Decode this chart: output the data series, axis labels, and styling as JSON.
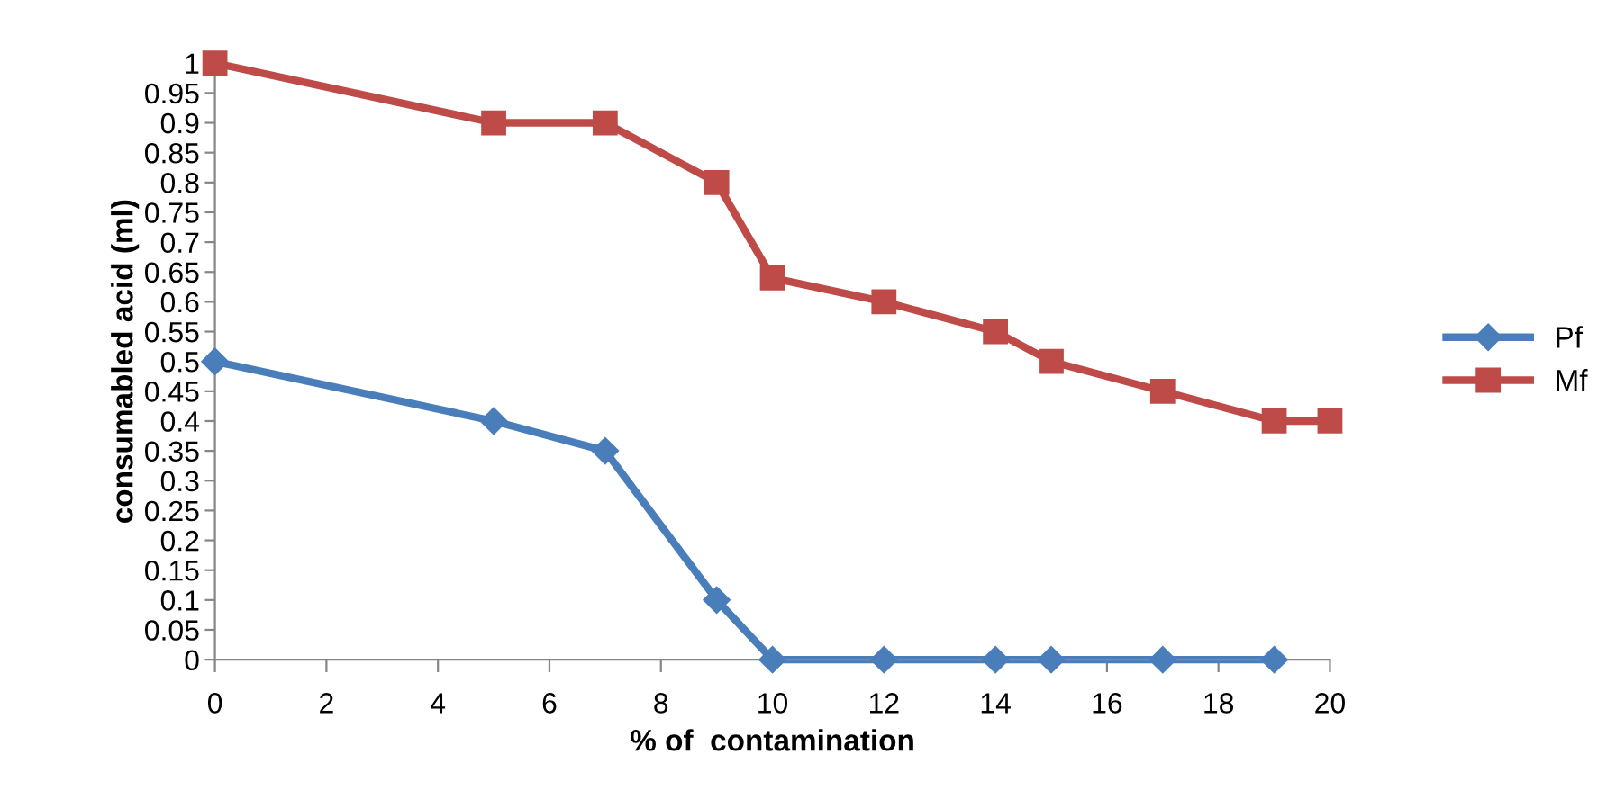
{
  "chart_data": {
    "type": "line",
    "xlabel": "% of  contamination",
    "ylabel": "consumabled acid (ml)",
    "xlim": [
      0,
      20
    ],
    "xticks": [
      0,
      2,
      4,
      6,
      8,
      10,
      12,
      14,
      16,
      18,
      20
    ],
    "ylim": [
      0,
      1
    ],
    "yticks": [
      0,
      0.05,
      0.1,
      0.15,
      0.2,
      0.25,
      0.3,
      0.35,
      0.4,
      0.45,
      0.5,
      0.55,
      0.6,
      0.65,
      0.7,
      0.75,
      0.8,
      0.85,
      0.9,
      0.95,
      1
    ],
    "grid": false,
    "legend": "right",
    "line_style": "solid",
    "series": [
      {
        "name": "Pf",
        "color": "#4a7ebb",
        "marker": "diamond",
        "x": [
          0,
          5,
          7,
          9,
          10,
          12,
          14,
          15,
          17,
          19
        ],
        "values": [
          0.5,
          0.4,
          0.35,
          0.1,
          0,
          0,
          0,
          0,
          0,
          0
        ]
      },
      {
        "name": "Mf",
        "color": "#be4b48",
        "marker": "square",
        "x": [
          0,
          5,
          7,
          9,
          10,
          12,
          14,
          15,
          17,
          19,
          20
        ],
        "values": [
          1,
          0.9,
          0.9,
          0.8,
          0.64,
          0.6,
          0.55,
          0.5,
          0.45,
          0.4,
          0.4
        ]
      }
    ]
  }
}
